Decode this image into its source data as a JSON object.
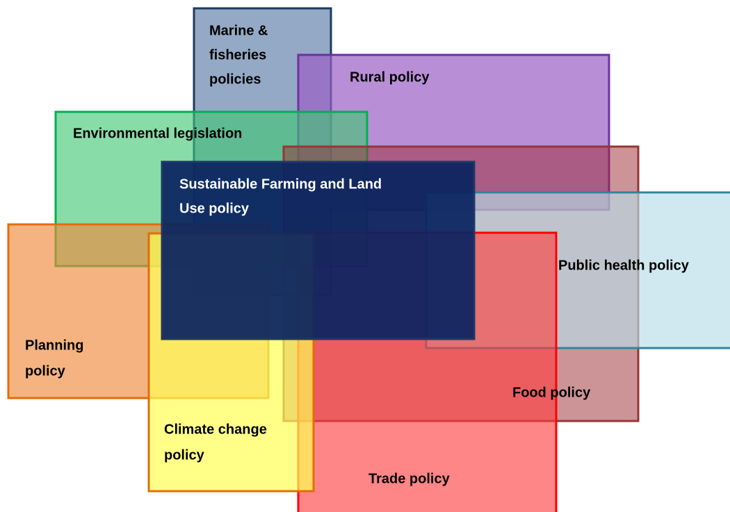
{
  "nodes": [
    {
      "lines": [
        "Marine &",
        "fisheries",
        "policies"
      ]
    },
    {
      "lines": [
        "Rural policy"
      ]
    },
    {
      "lines": [
        "Environmental legislation"
      ]
    },
    {
      "lines": [
        "Food policy"
      ]
    },
    {
      "lines": [
        "Public health policy"
      ]
    },
    {
      "lines": [
        "Planning",
        "policy"
      ]
    },
    {
      "lines": [
        "Trade policy"
      ]
    },
    {
      "lines": [
        "Climate change",
        "policy"
      ]
    },
    {
      "lines": [
        "Sustainable Farming and Land",
        "Use policy"
      ]
    }
  ]
}
